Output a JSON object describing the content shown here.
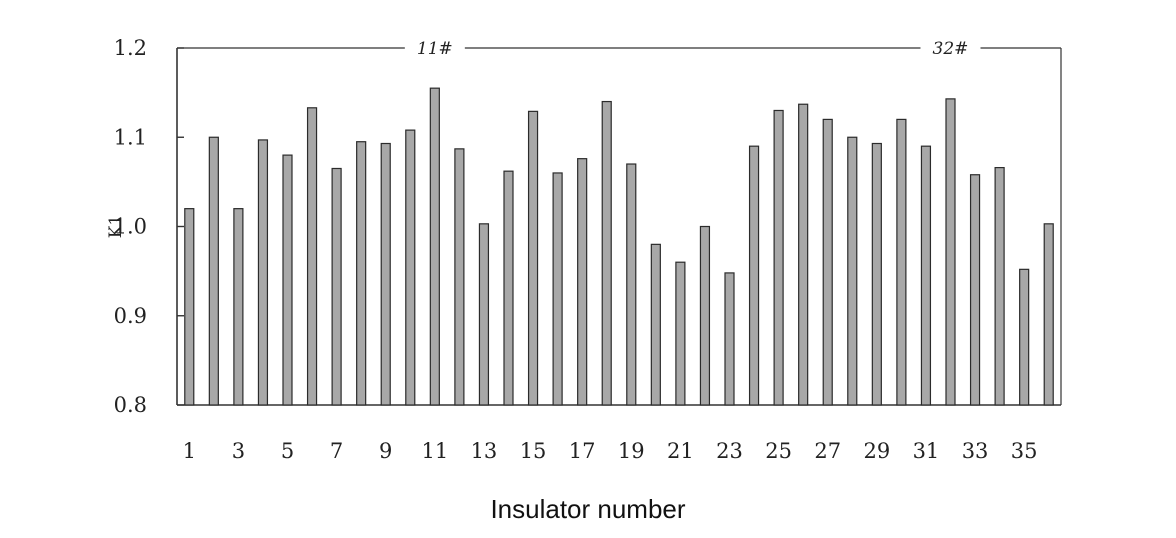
{
  "chart_data": {
    "type": "bar",
    "title": "",
    "xlabel": "Insulator number",
    "ylabel": "K1",
    "ylim": [
      0.8,
      1.2
    ],
    "yticks": [
      "0.8",
      "0.9",
      "1.0",
      "1.1",
      "1.2"
    ],
    "xticks": [
      "1",
      "3",
      "5",
      "7",
      "9",
      "11",
      "13",
      "15",
      "17",
      "19",
      "21",
      "23",
      "25",
      "27",
      "29",
      "31",
      "33",
      "35"
    ],
    "categories": [
      1,
      2,
      3,
      4,
      5,
      6,
      7,
      8,
      9,
      10,
      11,
      12,
      13,
      14,
      15,
      16,
      17,
      18,
      19,
      20,
      21,
      22,
      23,
      24,
      25,
      26,
      27,
      28,
      29,
      30,
      31,
      32,
      33,
      34,
      35,
      36
    ],
    "values": [
      1.02,
      1.1,
      1.02,
      1.097,
      1.08,
      1.133,
      1.065,
      1.095,
      1.093,
      1.108,
      1.155,
      1.087,
      1.003,
      1.062,
      1.129,
      1.06,
      1.076,
      1.14,
      1.07,
      0.98,
      0.96,
      1.0,
      0.948,
      1.09,
      1.13,
      1.137,
      1.12,
      1.1,
      1.093,
      1.12,
      1.09,
      1.143,
      1.058,
      1.066,
      0.952,
      1.003
    ],
    "annotations": [
      "11#",
      "32#"
    ],
    "grid": false,
    "bar_color": "#a8a8a8"
  }
}
